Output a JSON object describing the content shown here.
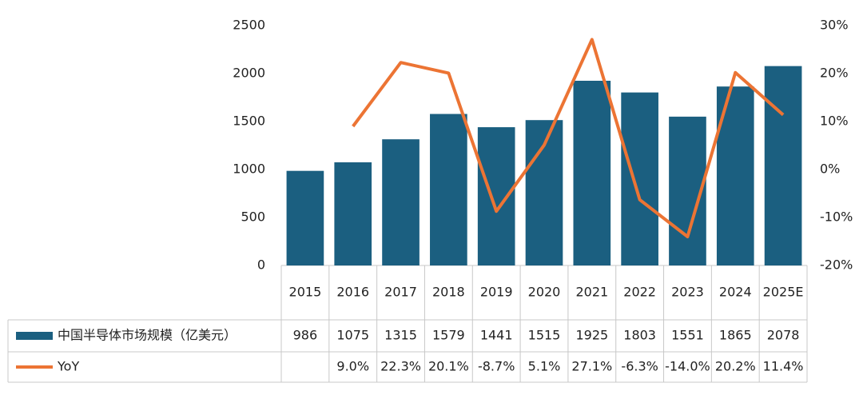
{
  "chart_data": {
    "type": "bar-line",
    "categories": [
      "2015",
      "2016",
      "2017",
      "2018",
      "2019",
      "2020",
      "2021",
      "2022",
      "2023",
      "2024",
      "2025E"
    ],
    "series": [
      {
        "name": "中国半导体市场规模（亿美元）",
        "type": "bar",
        "color": "#1b5f80",
        "values": [
          986,
          1075,
          1315,
          1579,
          1441,
          1515,
          1925,
          1803,
          1551,
          1865,
          2078
        ]
      },
      {
        "name": "YoY",
        "type": "line",
        "axis": "y2",
        "color": "#ec7434",
        "values": [
          null,
          9.0,
          22.3,
          20.1,
          -8.7,
          5.1,
          27.1,
          -6.3,
          -14.0,
          20.2,
          11.4
        ],
        "value_labels": [
          null,
          "9.0%",
          "22.3%",
          "20.1%",
          "-8.7%",
          "5.1%",
          "27.1%",
          "-6.3%",
          "-14.0%",
          "20.2%",
          "11.4%"
        ]
      }
    ],
    "ylim": [
      0,
      2500
    ],
    "yticks": [
      0,
      500,
      1000,
      1500,
      2000,
      2500
    ],
    "y2lim": [
      -20,
      30
    ],
    "y2ticks": [
      {
        "value": -20,
        "label": "-20%"
      },
      {
        "value": -10,
        "label": "-10%"
      },
      {
        "value": 0,
        "label": "0%"
      },
      {
        "value": 10,
        "label": "10%"
      },
      {
        "value": 20,
        "label": "20%"
      },
      {
        "value": 30,
        "label": "30%"
      }
    ],
    "grid": false,
    "data_table": true
  }
}
